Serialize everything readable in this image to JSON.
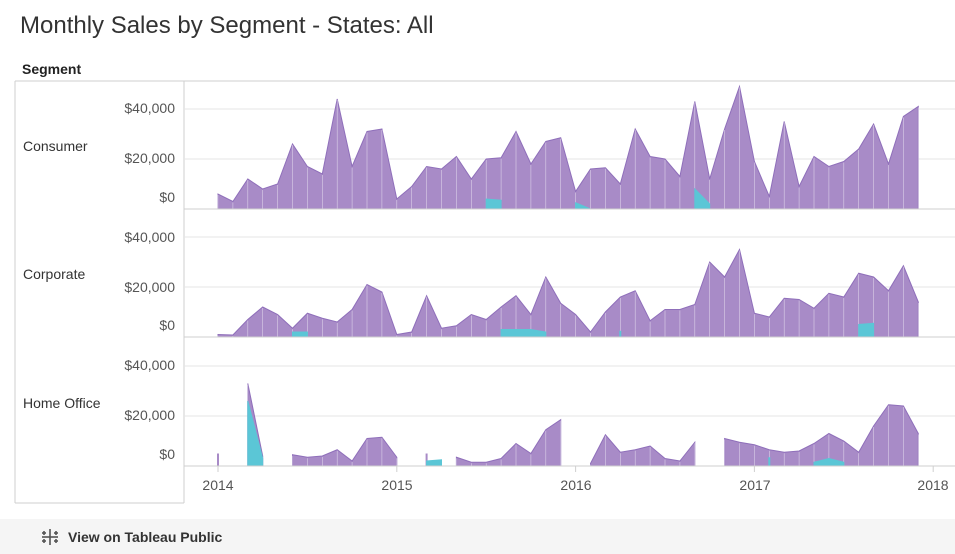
{
  "header": {
    "title": "Monthly Sales by Segment - States: All"
  },
  "segment_header": "Segment",
  "footer": {
    "link_label": "View on Tableau Public"
  },
  "colors": {
    "main": "#a88bc7",
    "main_stroke": "#8f6fba",
    "overlay": "#5bc6d6",
    "grid": "#e6e6e6",
    "divider": "#cfcfcf"
  },
  "y_tick_labels": [
    "$40,000",
    "$20,000",
    "$0"
  ],
  "x_tick_labels": [
    "2014",
    "2015",
    "2016",
    "2017",
    "2018"
  ],
  "chart_data": {
    "type": "area",
    "title": "Monthly Sales by Segment - States: All",
    "xlabel": "",
    "ylabel": "",
    "x_range": [
      "2014-01",
      "2018-01"
    ],
    "ylim": [
      0,
      50000
    ],
    "grid": true,
    "panels": [
      {
        "name": "Consumer",
        "series": [
          {
            "color": "#a88bc7",
            "values": [
              [
                0,
                6000
              ],
              [
                1,
                3000
              ],
              [
                2,
                12000
              ],
              [
                3,
                8000
              ],
              [
                4,
                10000
              ],
              [
                5,
                26000
              ],
              [
                6,
                17000
              ],
              [
                7,
                14000
              ],
              [
                8,
                44000
              ],
              [
                9,
                17000
              ],
              [
                10,
                31000
              ],
              [
                11,
                32000
              ],
              [
                12,
                4000
              ],
              [
                13,
                9000
              ],
              [
                14,
                17000
              ],
              [
                15,
                16000
              ],
              [
                16,
                21000
              ],
              [
                17,
                12000
              ],
              [
                18,
                20000
              ],
              [
                19,
                20500
              ],
              [
                20,
                31000
              ],
              [
                21,
                18000
              ],
              [
                22,
                27000
              ],
              [
                23,
                28500
              ],
              [
                24,
                7000
              ],
              [
                25,
                16000
              ],
              [
                26,
                16500
              ],
              [
                27,
                10000
              ],
              [
                28,
                32000
              ],
              [
                29,
                21000
              ],
              [
                30,
                20000
              ],
              [
                31,
                13000
              ],
              [
                32,
                43000
              ],
              [
                33,
                12000
              ],
              [
                34,
                32000
              ],
              [
                35,
                49000
              ],
              [
                36,
                19000
              ],
              [
                37,
                5000
              ],
              [
                38,
                35000
              ],
              [
                39,
                9000
              ],
              [
                40,
                21000
              ],
              [
                41,
                17000
              ],
              [
                42,
                19000
              ],
              [
                43,
                24000
              ],
              [
                44,
                34000
              ],
              [
                45,
                18000
              ],
              [
                46,
                37000
              ],
              [
                47,
                41000
              ]
            ]
          },
          {
            "color": "#5bc6d6",
            "values": [
              [
                18,
                4000
              ],
              [
                19,
                3500
              ],
              [
                24,
                2500
              ],
              [
                25,
                0
              ],
              [
                32,
                8000
              ],
              [
                33,
                2000
              ]
            ]
          }
        ]
      },
      {
        "name": "Corporate",
        "series": [
          {
            "color": "#a88bc7",
            "values": [
              [
                0,
                1000
              ],
              [
                1,
                800
              ],
              [
                2,
                7000
              ],
              [
                3,
                12000
              ],
              [
                4,
                9000
              ],
              [
                5,
                3500
              ],
              [
                6,
                9500
              ],
              [
                7,
                7500
              ],
              [
                8,
                6000
              ],
              [
                9,
                11000
              ],
              [
                10,
                21000
              ],
              [
                11,
                18000
              ],
              [
                12,
                1000
              ],
              [
                13,
                2000
              ],
              [
                14,
                16500
              ],
              [
                15,
                3500
              ],
              [
                16,
                4500
              ],
              [
                17,
                9000
              ],
              [
                18,
                7000
              ],
              [
                19,
                12000
              ],
              [
                20,
                16500
              ],
              [
                21,
                9000
              ],
              [
                22,
                24000
              ],
              [
                23,
                13500
              ],
              [
                24,
                9000
              ],
              [
                25,
                2000
              ],
              [
                26,
                10000
              ],
              [
                27,
                16000
              ],
              [
                28,
                18500
              ],
              [
                29,
                6500
              ],
              [
                30,
                11000
              ],
              [
                31,
                11000
              ],
              [
                32,
                13000
              ],
              [
                33,
                30000
              ],
              [
                34,
                24000
              ],
              [
                35,
                35000
              ],
              [
                36,
                9500
              ],
              [
                37,
                8000
              ],
              [
                38,
                15500
              ],
              [
                39,
                15000
              ],
              [
                40,
                11500
              ],
              [
                41,
                17500
              ],
              [
                42,
                16000
              ],
              [
                43,
                25500
              ],
              [
                44,
                24000
              ],
              [
                45,
                18500
              ],
              [
                46,
                28500
              ],
              [
                47,
                14000
              ]
            ]
          },
          {
            "color": "#5bc6d6",
            "values": [
              [
                5,
                2000
              ],
              [
                6,
                2000
              ],
              [
                19,
                3000
              ],
              [
                20,
                3000
              ],
              [
                21,
                3000
              ],
              [
                22,
                2000
              ],
              [
                27,
                2500
              ],
              [
                43,
                5000
              ],
              [
                44,
                5500
              ]
            ]
          }
        ]
      },
      {
        "name": "Home Office",
        "series": [
          {
            "color": "#a88bc7",
            "values": [
              [
                0,
                5000
              ],
              [
                2,
                33000
              ],
              [
                3,
                4000
              ],
              [
                5,
                4500
              ],
              [
                6,
                3500
              ],
              [
                7,
                4000
              ],
              [
                8,
                6500
              ],
              [
                9,
                2000
              ],
              [
                10,
                11000
              ],
              [
                11,
                11500
              ],
              [
                12,
                3500
              ],
              [
                14,
                5000
              ],
              [
                16,
                3500
              ],
              [
                17,
                1500
              ],
              [
                18,
                1500
              ],
              [
                19,
                3000
              ],
              [
                20,
                9000
              ],
              [
                21,
                5000
              ],
              [
                22,
                14500
              ],
              [
                23,
                18500
              ],
              [
                25,
                1000
              ],
              [
                26,
                12500
              ],
              [
                27,
                5500
              ],
              [
                28,
                6500
              ],
              [
                29,
                8000
              ],
              [
                30,
                3000
              ],
              [
                31,
                2000
              ],
              [
                32,
                9500
              ],
              [
                34,
                11000
              ],
              [
                35,
                9500
              ],
              [
                36,
                8500
              ],
              [
                37,
                6500
              ],
              [
                38,
                5500
              ],
              [
                39,
                6000
              ],
              [
                40,
                9000
              ],
              [
                41,
                13000
              ],
              [
                42,
                10000
              ],
              [
                43,
                5500
              ],
              [
                44,
                16000
              ],
              [
                45,
                24500
              ],
              [
                46,
                24000
              ],
              [
                47,
                13000
              ]
            ]
          },
          {
            "color": "#5bc6d6",
            "values": [
              [
                2,
                26000
              ],
              [
                3,
                3000
              ],
              [
                14,
                2000
              ],
              [
                15,
                2500
              ],
              [
                37,
                3500
              ],
              [
                40,
                1500
              ],
              [
                41,
                3000
              ],
              [
                42,
                1500
              ]
            ]
          }
        ]
      }
    ]
  }
}
